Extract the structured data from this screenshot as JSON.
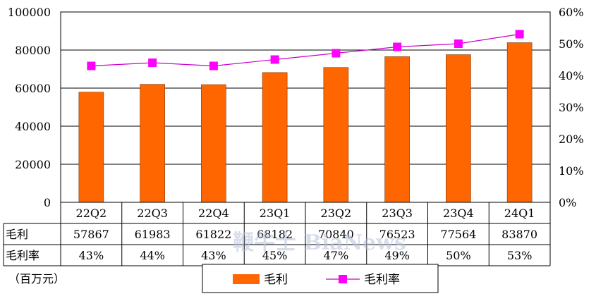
{
  "chart_data": {
    "type": "bar",
    "categories": [
      "22Q2",
      "22Q3",
      "22Q4",
      "23Q1",
      "23Q2",
      "23Q3",
      "23Q4",
      "24Q1"
    ],
    "series": [
      {
        "name": "毛利",
        "kind": "bar",
        "axis": "left",
        "color": "#ff6600",
        "values": [
          57867,
          61983,
          61822,
          68182,
          70840,
          76523,
          77564,
          83870
        ]
      },
      {
        "name": "毛利率",
        "kind": "line",
        "axis": "right",
        "color": "#ff00ff",
        "line_color": "#cc00cc",
        "values": [
          43,
          44,
          43,
          45,
          47,
          49,
          50,
          53
        ]
      }
    ],
    "y_left": {
      "min": 0,
      "max": 100000,
      "ticks": [
        "0",
        "20000",
        "40000",
        "60000",
        "80000",
        "100000"
      ]
    },
    "y_right": {
      "min": 0,
      "max": 60,
      "ticks": [
        "0%",
        "10%",
        "20%",
        "30%",
        "40%",
        "50%",
        "60%"
      ]
    },
    "table": {
      "rows": [
        {
          "label": "毛利",
          "cells": [
            "57867",
            "61983",
            "61822",
            "68182",
            "70840",
            "76523",
            "77564",
            "83870"
          ]
        },
        {
          "label": "毛利率",
          "cells": [
            "43%",
            "44%",
            "43%",
            "45%",
            "47%",
            "49%",
            "50%",
            "53%"
          ]
        }
      ]
    },
    "unit_label": "（百万元）",
    "legend": {
      "placement": "bottom"
    },
    "grid": true
  },
  "watermark": "鞭牛士 BiaNews"
}
